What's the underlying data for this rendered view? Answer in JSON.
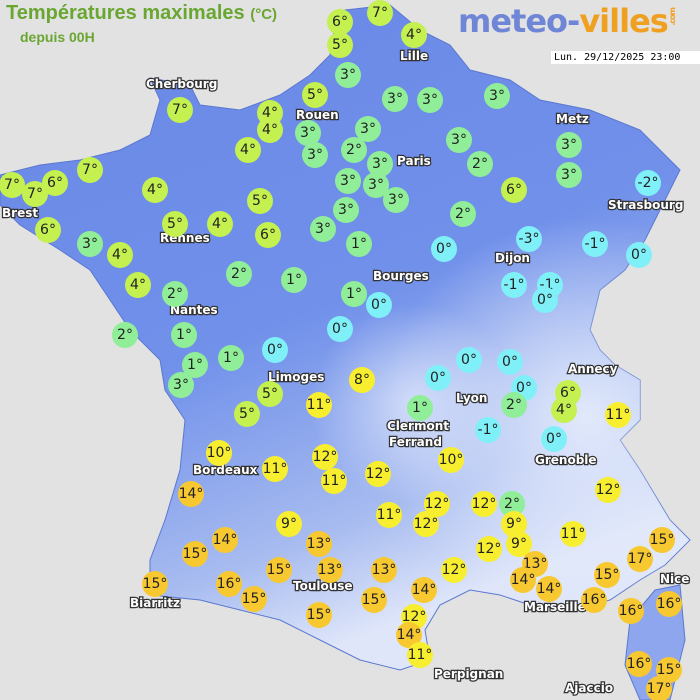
{
  "header": {
    "title": "Températures maximales",
    "unit": "(°C)",
    "subtitle": "depuis 00H",
    "logo": {
      "part1": "meteo-",
      "part2": "villes",
      "suffix": ".com"
    },
    "datetime": "Lun. 29/12/2025 23:00"
  },
  "colors": {
    "land": "#6a88e6",
    "sea": "#e2e2e2",
    "below_or_zero": "#80f0f8",
    "t1_3": "#90ee98",
    "t4_7": "#c4f050",
    "t8_12": "#f8ee30",
    "t13_plus": "#f8c830"
  },
  "cities": [
    "Lille",
    "Cherbourg",
    "Rouen",
    "Paris",
    "Metz",
    "Brest",
    "Rennes",
    "Strasbourg",
    "Dijon",
    "Bourges",
    "Nantes",
    "Limoges",
    "Annecy",
    "Lyon",
    "Clermont",
    "Ferrand",
    "Grenoble",
    "Bordeaux",
    "Nice",
    "Toulouse",
    "Marseille",
    "Biarritz",
    "Perpignan",
    "Ajaccio"
  ],
  "temperatures": [
    6,
    7,
    5,
    4,
    3,
    5,
    3,
    3,
    3,
    4,
    4,
    3,
    3,
    3,
    2,
    3,
    3,
    3,
    7,
    4,
    2,
    3,
    3,
    3,
    3,
    7,
    7,
    7,
    6,
    4,
    5,
    6,
    -2,
    3,
    5,
    4,
    6,
    3,
    2,
    6,
    3,
    1,
    0,
    -3,
    -1,
    0,
    4,
    2,
    1,
    4,
    2,
    -1,
    -1,
    0,
    1,
    0,
    2,
    1,
    0,
    1,
    1,
    0,
    3,
    0,
    0,
    0,
    8,
    0,
    6,
    5,
    11,
    2,
    4,
    5,
    11,
    1,
    -1,
    0,
    10,
    12,
    10,
    11,
    11,
    12,
    12,
    14,
    12,
    12,
    2,
    11,
    12,
    9,
    9,
    11,
    14,
    13,
    15,
    9,
    12,
    15,
    17,
    13,
    15,
    16,
    15,
    13,
    13,
    12,
    14,
    15,
    14,
    14,
    15,
    15,
    16,
    16,
    16,
    15,
    12,
    14,
    11,
    16,
    15,
    17
  ]
}
